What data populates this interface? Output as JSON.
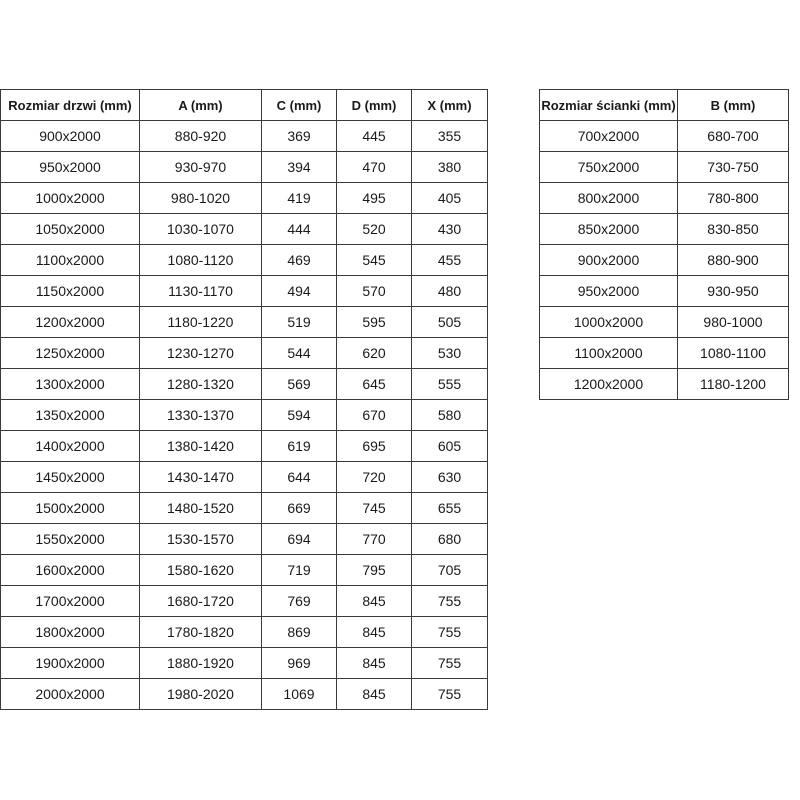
{
  "doors_table": {
    "headers": [
      "Rozmiar drzwi (mm)",
      "A (mm)",
      "C (mm)",
      "D (mm)",
      "X (mm)"
    ],
    "rows": [
      [
        "900x2000",
        "880-920",
        "369",
        "445",
        "355"
      ],
      [
        "950x2000",
        "930-970",
        "394",
        "470",
        "380"
      ],
      [
        "1000x2000",
        "980-1020",
        "419",
        "495",
        "405"
      ],
      [
        "1050x2000",
        "1030-1070",
        "444",
        "520",
        "430"
      ],
      [
        "1100x2000",
        "1080-1120",
        "469",
        "545",
        "455"
      ],
      [
        "1150x2000",
        "1130-1170",
        "494",
        "570",
        "480"
      ],
      [
        "1200x2000",
        "1180-1220",
        "519",
        "595",
        "505"
      ],
      [
        "1250x2000",
        "1230-1270",
        "544",
        "620",
        "530"
      ],
      [
        "1300x2000",
        "1280-1320",
        "569",
        "645",
        "555"
      ],
      [
        "1350x2000",
        "1330-1370",
        "594",
        "670",
        "580"
      ],
      [
        "1400x2000",
        "1380-1420",
        "619",
        "695",
        "605"
      ],
      [
        "1450x2000",
        "1430-1470",
        "644",
        "720",
        "630"
      ],
      [
        "1500x2000",
        "1480-1520",
        "669",
        "745",
        "655"
      ],
      [
        "1550x2000",
        "1530-1570",
        "694",
        "770",
        "680"
      ],
      [
        "1600x2000",
        "1580-1620",
        "719",
        "795",
        "705"
      ],
      [
        "1700x2000",
        "1680-1720",
        "769",
        "845",
        "755"
      ],
      [
        "1800x2000",
        "1780-1820",
        "869",
        "845",
        "755"
      ],
      [
        "1900x2000",
        "1880-1920",
        "969",
        "845",
        "755"
      ],
      [
        "2000x2000",
        "1980-2020",
        "1069",
        "845",
        "755"
      ]
    ]
  },
  "walls_table": {
    "headers": [
      "Rozmiar ścianki (mm)",
      "B (mm)"
    ],
    "rows": [
      [
        "700x2000",
        "680-700"
      ],
      [
        "750x2000",
        "730-750"
      ],
      [
        "800x2000",
        "780-800"
      ],
      [
        "850x2000",
        "830-850"
      ],
      [
        "900x2000",
        "880-900"
      ],
      [
        "950x2000",
        "930-950"
      ],
      [
        "1000x2000",
        "980-1000"
      ],
      [
        "1100x2000",
        "1080-1100"
      ],
      [
        "1200x2000",
        "1180-1200"
      ]
    ]
  }
}
